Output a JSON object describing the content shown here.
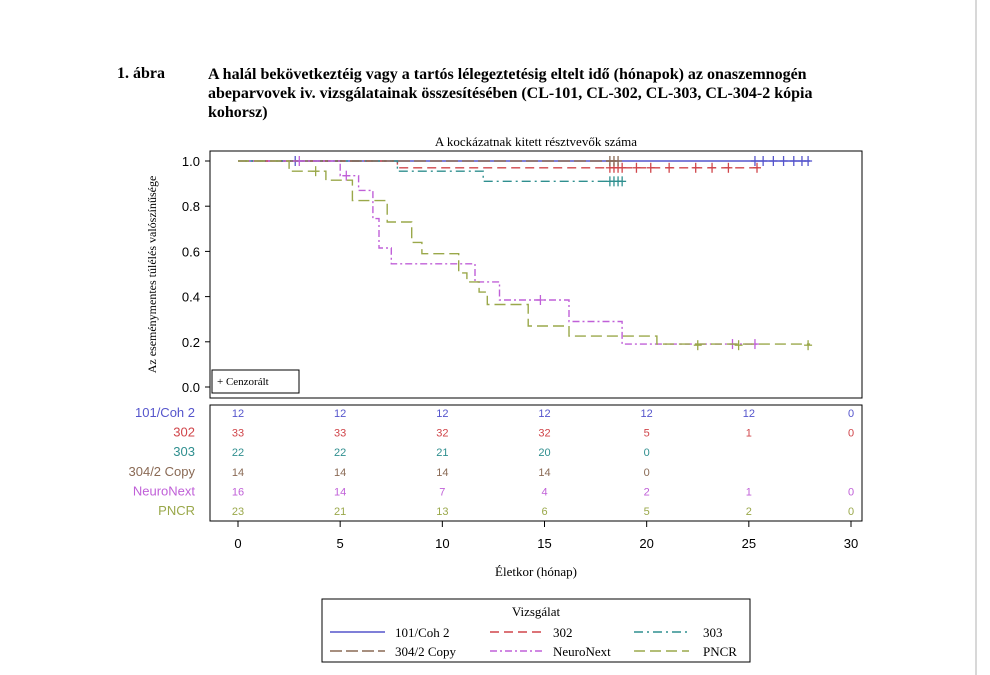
{
  "figure": {
    "label": "1. ábra",
    "title": "A halál bekövetkeztéig vagy a tartós lélegeztetésig eltelt idő (hónapok) az onaszemnogén abeparvovek iv. vizsgálatainak összesítésében (CL-101, CL-302, CL-303, CL-304-2 kópia kohorsz)"
  },
  "chart_data": {
    "type": "line",
    "subtitle": "A kockázatnak kitett résztvevők száma",
    "xlabel": "Életkor (hónap)",
    "ylabel": "Az eseménymentes túlélés valószínűsége",
    "xlim": [
      0,
      30
    ],
    "ylim": [
      0,
      1.0
    ],
    "x_ticks": [
      "0",
      "5",
      "10",
      "15",
      "20",
      "25",
      "30"
    ],
    "y_ticks": [
      "0.0",
      "0.2",
      "0.4",
      "0.6",
      "0.8",
      "1.0"
    ],
    "censor_legend": "+ Cenzorált",
    "legend_title": "Vizsgálat",
    "legend_position": "bottom",
    "series": [
      {
        "name": "101/Coh 2",
        "color": "#5555cc",
        "dash": "",
        "steps": [
          [
            0,
            1.0
          ],
          [
            28,
            1.0
          ]
        ],
        "censors": [
          [
            2.8,
            1.0
          ],
          [
            25.3,
            1.0
          ],
          [
            25.7,
            1.0
          ],
          [
            26.2,
            1.0
          ],
          [
            26.7,
            1.0
          ],
          [
            27.2,
            1.0
          ],
          [
            27.6,
            1.0
          ],
          [
            27.9,
            1.0
          ]
        ]
      },
      {
        "name": "302",
        "color": "#d0454a",
        "dash": "9,5",
        "steps": [
          [
            0,
            1.0
          ],
          [
            7.8,
            1.0
          ],
          [
            7.8,
            0.97
          ],
          [
            25.5,
            0.97
          ]
        ],
        "censors": [
          [
            18.2,
            0.97
          ],
          [
            18.4,
            0.97
          ],
          [
            18.6,
            0.97
          ],
          [
            18.8,
            0.97
          ],
          [
            19.5,
            0.97
          ],
          [
            20.2,
            0.97
          ],
          [
            21.1,
            0.97
          ],
          [
            22.4,
            0.97
          ],
          [
            23.2,
            0.97
          ],
          [
            24.0,
            0.97
          ],
          [
            25.4,
            0.97
          ]
        ]
      },
      {
        "name": "303",
        "color": "#2f8f8f",
        "dash": "9,4,2,4",
        "steps": [
          [
            0,
            1.0
          ],
          [
            7.8,
            1.0
          ],
          [
            7.8,
            0.955
          ],
          [
            12.0,
            0.955
          ],
          [
            12.0,
            0.91
          ],
          [
            18.8,
            0.91
          ]
        ],
        "censors": [
          [
            18.2,
            0.91
          ],
          [
            18.4,
            0.91
          ],
          [
            18.6,
            0.91
          ],
          [
            18.8,
            0.91
          ]
        ]
      },
      {
        "name": "304/2 Copy",
        "color": "#8a6a55",
        "dash": "12,4",
        "steps": [
          [
            0,
            1.0
          ],
          [
            18.5,
            1.0
          ]
        ],
        "censors": [
          [
            18.2,
            1.0
          ],
          [
            18.4,
            1.0
          ],
          [
            18.6,
            1.0
          ]
        ]
      },
      {
        "name": "NeuroNext",
        "color": "#c060d8",
        "dash": "7,3,2,3",
        "steps": [
          [
            0,
            1.0
          ],
          [
            5.0,
            1.0
          ],
          [
            5.0,
            0.935
          ],
          [
            5.9,
            0.935
          ],
          [
            5.9,
            0.87
          ],
          [
            6.6,
            0.87
          ],
          [
            6.6,
            0.745
          ],
          [
            6.9,
            0.745
          ],
          [
            6.9,
            0.615
          ],
          [
            7.5,
            0.615
          ],
          [
            7.5,
            0.545
          ],
          [
            11.6,
            0.545
          ],
          [
            11.6,
            0.465
          ],
          [
            12.8,
            0.465
          ],
          [
            12.8,
            0.385
          ],
          [
            16.2,
            0.385
          ],
          [
            16.2,
            0.29
          ],
          [
            18.8,
            0.29
          ],
          [
            18.8,
            0.19
          ],
          [
            25.5,
            0.19
          ]
        ],
        "censors": [
          [
            3.0,
            1.0
          ],
          [
            5.3,
            0.935
          ],
          [
            14.8,
            0.385
          ],
          [
            24.2,
            0.19
          ],
          [
            25.3,
            0.19
          ]
        ]
      },
      {
        "name": "PNCR",
        "color": "#9aa84a",
        "dash": "11,5",
        "steps": [
          [
            0,
            1.0
          ],
          [
            2.5,
            1.0
          ],
          [
            2.5,
            0.955
          ],
          [
            4.3,
            0.955
          ],
          [
            4.3,
            0.915
          ],
          [
            5.6,
            0.915
          ],
          [
            5.6,
            0.825
          ],
          [
            7.3,
            0.825
          ],
          [
            7.3,
            0.73
          ],
          [
            8.5,
            0.73
          ],
          [
            8.5,
            0.64
          ],
          [
            9.0,
            0.64
          ],
          [
            9.0,
            0.59
          ],
          [
            10.8,
            0.59
          ],
          [
            10.8,
            0.505
          ],
          [
            11.2,
            0.505
          ],
          [
            11.2,
            0.465
          ],
          [
            11.8,
            0.465
          ],
          [
            11.8,
            0.42
          ],
          [
            12.2,
            0.42
          ],
          [
            12.2,
            0.365
          ],
          [
            14.2,
            0.365
          ],
          [
            14.2,
            0.27
          ],
          [
            16.2,
            0.27
          ],
          [
            16.2,
            0.225
          ],
          [
            20.5,
            0.225
          ],
          [
            20.5,
            0.19
          ],
          [
            28.0,
            0.19
          ]
        ],
        "censors": [
          [
            3.8,
            0.955
          ],
          [
            22.5,
            0.185
          ],
          [
            24.5,
            0.185
          ],
          [
            27.9,
            0.185
          ]
        ]
      }
    ],
    "risk_table": {
      "time_points": [
        0,
        5,
        10,
        15,
        20,
        25,
        30
      ],
      "rows": [
        {
          "name": "101/Coh 2",
          "color": "#5555cc",
          "counts": [
            "12",
            "12",
            "12",
            "12",
            "12",
            "12",
            "0"
          ]
        },
        {
          "name": "302",
          "color": "#d0454a",
          "counts": [
            "33",
            "33",
            "32",
            "32",
            "5",
            "1",
            "0"
          ]
        },
        {
          "name": "303",
          "color": "#2f8f8f",
          "counts": [
            "22",
            "22",
            "21",
            "20",
            "0",
            "",
            ""
          ]
        },
        {
          "name": "304/2 Copy",
          "color": "#8a6a55",
          "counts": [
            "14",
            "14",
            "14",
            "14",
            "0",
            "",
            ""
          ]
        },
        {
          "name": "NeuroNext",
          "color": "#c060d8",
          "counts": [
            "16",
            "14",
            "7",
            "4",
            "2",
            "1",
            "0"
          ]
        },
        {
          "name": "PNCR",
          "color": "#9aa84a",
          "counts": [
            "23",
            "21",
            "13",
            "6",
            "5",
            "2",
            "0"
          ]
        }
      ]
    }
  }
}
